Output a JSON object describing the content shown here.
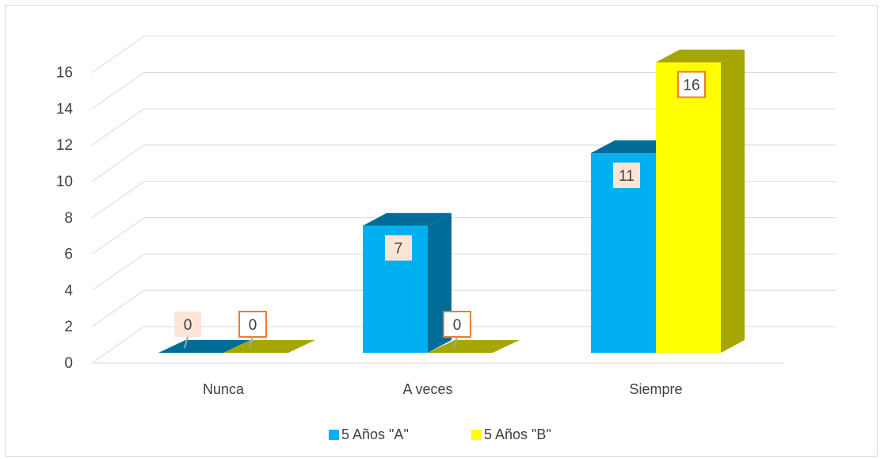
{
  "chart_data": {
    "type": "bar",
    "categories": [
      "Nunca",
      "A veces",
      "Siempre"
    ],
    "series": [
      {
        "name": "5 Años  \"A\"",
        "values": [
          0,
          7,
          11
        ],
        "color": "#00b0f0",
        "side_color": "#006d99",
        "label_bg": "#fce4d6"
      },
      {
        "name": "5 Años  \"B\"",
        "values": [
          0,
          0,
          16
        ],
        "color": "#ffff00",
        "side_color": "#a6a600",
        "label_bg": "#ffffff",
        "label_border": "#ed7d31"
      }
    ],
    "yticks": [
      0,
      2,
      4,
      6,
      8,
      10,
      12,
      14,
      16
    ],
    "ylim": [
      0,
      16
    ],
    "grid": true,
    "legend": "bottom",
    "three_d": true,
    "title": "",
    "xlabel": "",
    "ylabel": ""
  }
}
